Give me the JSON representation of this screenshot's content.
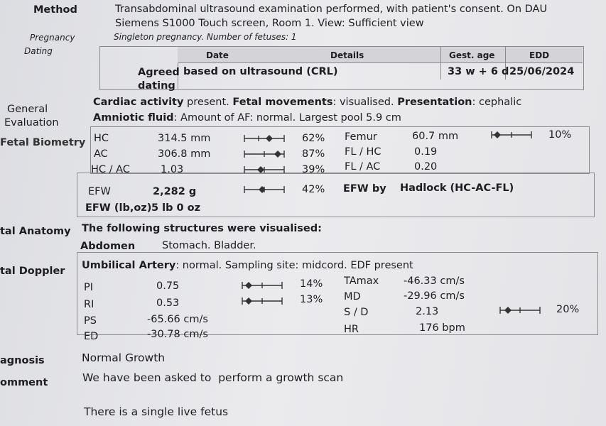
{
  "method": {
    "label": "Method",
    "lines": [
      "Transabdominal ultrasound examination performed, with patient's consent. On DAU",
      "Siemens S1000 Touch screen, Room 1. View: Sufficient view"
    ]
  },
  "pregnancy_dating": {
    "label_lines": [
      "Pregnancy",
      "Dating"
    ],
    "summary": "Singleton pregnancy. Number of fetuses: 1",
    "table": {
      "headers": [
        "Date",
        "Details",
        "Gest. age",
        "EDD"
      ],
      "rows": [
        {
          "dating": "Agreed dating",
          "details": "based on ultrasound (CRL)",
          "gest_age": "33 w + 6 d",
          "edd": "25/06/2024"
        }
      ]
    }
  },
  "general_evaluation": {
    "label_lines": [
      "General",
      "Evaluation"
    ],
    "lines": [
      [
        "Cardiac activity",
        " present. ",
        "Fetal movements",
        ": visualised. ",
        "Presentation",
        ": cephalic"
      ],
      [
        "Amniotic fluid",
        ": Amount of AF: normal. Largest pool 5.9 cm"
      ]
    ]
  },
  "fetal_biometry": {
    "label": "Fetal Biometry",
    "rows": [
      {
        "name": "HC",
        "value": "314.5 mm",
        "percentile": "62%"
      },
      {
        "name": "AC",
        "value": "306.8 mm",
        "percentile": "87%"
      },
      {
        "name": "HC / AC",
        "value": "1.03",
        "percentile": "39%"
      }
    ],
    "right_rows": [
      {
        "name": "Femur",
        "value": "60.7 mm",
        "percentile": "10%"
      },
      {
        "name": "FL / HC",
        "value": "0.19"
      },
      {
        "name": "FL / AC",
        "value": "0.20"
      }
    ],
    "efw": {
      "label": "EFW",
      "value": "2,282 g",
      "percentile": "42%",
      "method_label": "EFW by",
      "method": "Hadlock (HC-AC-FL)",
      "lboz_label": "EFW (lb,oz)",
      "lboz_value": "5 lb 0 oz"
    }
  },
  "fetal_anatomy": {
    "label": "tal Anatomy",
    "intro": "The following structures were visualised:",
    "organ": "Abdomen",
    "findings": "Stomach. Bladder."
  },
  "fetal_doppler": {
    "label": "tal Doppler",
    "heading": [
      "Umbilical Artery",
      ": normal. Sampling site: midcord. EDF present"
    ],
    "left_rows": [
      {
        "name": "PI",
        "value": "0.75",
        "percentile": "14%"
      },
      {
        "name": "RI",
        "value": "0.53",
        "percentile": "13%"
      },
      {
        "name": "PS",
        "value": "-65.66 cm/s"
      },
      {
        "name": "ED",
        "value": "-30.78 cm/s"
      }
    ],
    "right_rows": [
      {
        "name": "TAmax",
        "value": "-46.33 cm/s"
      },
      {
        "name": "MD",
        "value": "-29.96 cm/s"
      },
      {
        "name": "S / D",
        "value": "2.13",
        "percentile": "20%"
      },
      {
        "name": "HR",
        "value": "176 bpm"
      }
    ]
  },
  "diagnosis": {
    "label": "agnosis",
    "text": "Normal Growth"
  },
  "comment": {
    "label": "omment",
    "lines": [
      "We have been asked to  perform a growth scan",
      "There is a single live fetus"
    ]
  }
}
